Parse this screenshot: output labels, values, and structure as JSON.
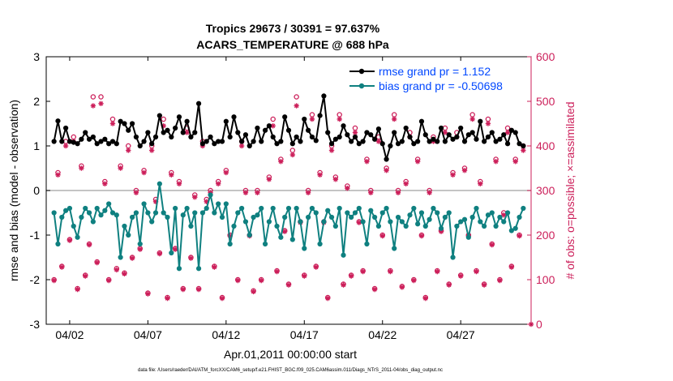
{
  "chart_data": {
    "type": "line",
    "title": "Tropics 29673 / 30391 = 97.637%",
    "subtitle": "ACARS_TEMPERATURE @ 688 hPa",
    "xlabel": "Apr.01,2011 00:00:00 start",
    "ylabel": "rmse and bias (model - observation)",
    "y2label": "# of obs: o=possible; ×=assimilated",
    "footnote": "data file: /Users/raeder/DAI/ATM_forcXX/CAM6_setup/f.e21.FHIST_BGC.f09_025.CAM6assim.011/Diags_NTrS_2011-04/obs_diag_output.nc",
    "xlim": [
      0.5,
      31.5
    ],
    "ylim": [
      -3,
      3
    ],
    "y2lim": [
      0,
      600
    ],
    "x_ticks": [
      2,
      7,
      12,
      17,
      22,
      27
    ],
    "x_tick_labels": [
      "04/02",
      "04/07",
      "04/12",
      "04/17",
      "04/22",
      "04/27"
    ],
    "y_ticks": [
      -3,
      -2,
      -1,
      0,
      1,
      2,
      3
    ],
    "y2_ticks": [
      0,
      100,
      200,
      300,
      400,
      500,
      600
    ],
    "colors": {
      "rmse": "#000000",
      "bias": "#0f8080",
      "obs": "#cc1f5a",
      "zero_line": "#b0b0b0",
      "legend_text": "#0047ff"
    },
    "x": [
      1.0,
      1.25,
      1.5,
      1.75,
      2.0,
      2.25,
      2.5,
      2.75,
      3.0,
      3.25,
      3.5,
      3.75,
      4.0,
      4.25,
      4.5,
      4.75,
      5.0,
      5.25,
      5.5,
      5.75,
      6.0,
      6.25,
      6.5,
      6.75,
      7.0,
      7.25,
      7.5,
      7.75,
      8.0,
      8.25,
      8.5,
      8.75,
      9.0,
      9.25,
      9.5,
      9.75,
      10.0,
      10.25,
      10.5,
      10.75,
      11.0,
      11.25,
      11.5,
      11.75,
      12.0,
      12.25,
      12.5,
      12.75,
      13.0,
      13.25,
      13.5,
      13.75,
      14.0,
      14.25,
      14.5,
      14.75,
      15.0,
      15.25,
      15.5,
      15.75,
      16.0,
      16.25,
      16.5,
      16.75,
      17.0,
      17.25,
      17.5,
      17.75,
      18.0,
      18.25,
      18.5,
      18.75,
      19.0,
      19.25,
      19.5,
      19.75,
      20.0,
      20.25,
      20.5,
      20.75,
      21.0,
      21.25,
      21.5,
      21.75,
      22.0,
      22.25,
      22.5,
      22.75,
      23.0,
      23.25,
      23.5,
      23.75,
      24.0,
      24.25,
      24.5,
      24.75,
      25.0,
      25.25,
      25.5,
      25.75,
      26.0,
      26.25,
      26.5,
      26.75,
      27.0,
      27.25,
      27.5,
      27.75,
      28.0,
      28.25,
      28.5,
      28.75,
      29.0,
      29.25,
      29.5,
      29.75,
      30.0,
      30.25,
      30.5,
      30.75,
      31.0
    ],
    "series": [
      {
        "name": "rmse grand pr = 1.152",
        "marker": "dot",
        "values": [
          1.1,
          1.56,
          1.1,
          1.4,
          1.1,
          1.08,
          1.05,
          1.15,
          1.3,
          1.15,
          1.2,
          1.05,
          1.1,
          1.15,
          1.05,
          1.1,
          1.05,
          1.55,
          1.5,
          1.35,
          1.5,
          1.2,
          1.0,
          1.1,
          1.3,
          1.05,
          1.2,
          1.68,
          1.3,
          1.35,
          1.2,
          1.4,
          1.65,
          1.3,
          1.55,
          1.2,
          1.3,
          1.95,
          1.05,
          1.1,
          1.2,
          1.05,
          1.1,
          1.1,
          1.55,
          1.2,
          1.65,
          1.3,
          1.1,
          1.25,
          1.0,
          1.1,
          1.4,
          1.1,
          1.35,
          1.45,
          1.2,
          1.05,
          1.1,
          1.65,
          1.35,
          1.05,
          1.2,
          1.1,
          1.6,
          1.35,
          1.2,
          1.12,
          1.68,
          2.12,
          1.3,
          1.05,
          1.15,
          1.2,
          1.45,
          1.25,
          1.1,
          1.2,
          1.05,
          1.1,
          1.3,
          1.25,
          1.15,
          1.38,
          1.05,
          0.7,
          1.0,
          1.3,
          1.05,
          1.1,
          1.4,
          1.2,
          1.05,
          1.1,
          1.55,
          1.25,
          1.1,
          1.15,
          1.1,
          1.4,
          1.1,
          1.25,
          1.15,
          1.2,
          1.4,
          1.1,
          1.25,
          1.3,
          1.15,
          1.55,
          1.1,
          1.2,
          1.3,
          1.1,
          1.15,
          1.25,
          1.05,
          1.35,
          1.3,
          1.05,
          1.0
        ]
      },
      {
        "name": "bias grand pr = -0.50698",
        "marker": "dot",
        "values": [
          -0.5,
          -1.2,
          -0.6,
          -0.45,
          -0.4,
          -0.8,
          -1.05,
          -0.6,
          -0.4,
          -0.5,
          -0.7,
          -0.4,
          -0.55,
          -0.45,
          -0.3,
          -0.5,
          -0.55,
          -1.5,
          -0.8,
          -1.0,
          -0.6,
          -0.5,
          -1.2,
          -0.3,
          -0.5,
          -0.7,
          -0.5,
          0.15,
          -0.5,
          -0.6,
          -1.4,
          -0.4,
          -1.75,
          -0.55,
          -0.4,
          -0.8,
          -0.5,
          -1.75,
          -0.5,
          -0.4,
          -0.1,
          -0.5,
          -0.3,
          -0.6,
          -0.3,
          -1.2,
          -0.8,
          -0.5,
          -0.4,
          -0.7,
          -1.0,
          -0.6,
          -0.55,
          -0.4,
          -1.2,
          -0.7,
          -0.4,
          -0.8,
          -1.05,
          -0.6,
          -0.4,
          -1.1,
          -0.4,
          -0.7,
          -1.3,
          -0.6,
          -0.4,
          -0.5,
          -1.2,
          -0.7,
          -0.45,
          -0.6,
          -0.8,
          -0.4,
          -1.45,
          -0.5,
          -0.6,
          -0.5,
          -0.4,
          -0.7,
          -1.2,
          -0.45,
          -0.6,
          -0.8,
          -0.5,
          -0.4,
          -0.7,
          -1.3,
          -0.6,
          -0.7,
          -0.8,
          -0.55,
          -0.4,
          -0.75,
          -0.5,
          -0.8,
          -0.65,
          -0.4,
          -0.5,
          -0.85,
          -0.6,
          -0.5,
          -1.5,
          -0.8,
          -0.7,
          -0.65,
          -1.05,
          -0.6,
          -0.4,
          -0.7,
          -0.8,
          -0.55,
          -0.5,
          -0.8,
          -0.6,
          -0.7,
          -0.5,
          -0.9,
          -0.85,
          -0.6,
          -0.4
        ]
      }
    ],
    "obs_possible": [
      [
        1.0,
        100
      ],
      [
        1.25,
        340
      ],
      [
        1.5,
        130
      ],
      [
        1.75,
        410
      ],
      [
        2.0,
        190
      ],
      [
        2.25,
        420
      ],
      [
        2.5,
        80
      ],
      [
        2.75,
        355
      ],
      [
        3.0,
        110
      ],
      [
        3.25,
        180
      ],
      [
        3.5,
        510
      ],
      [
        3.75,
        140
      ],
      [
        4.0,
        510
      ],
      [
        4.25,
        320
      ],
      [
        4.5,
        100
      ],
      [
        4.75,
        460
      ],
      [
        5.0,
        125
      ],
      [
        5.25,
        355
      ],
      [
        5.5,
        115
      ],
      [
        5.75,
        400
      ],
      [
        6.0,
        150
      ],
      [
        6.25,
        300
      ],
      [
        6.5,
        170
      ],
      [
        6.75,
        345
      ],
      [
        7.0,
        70
      ],
      [
        7.25,
        400
      ],
      [
        7.5,
        280
      ],
      [
        7.75,
        160
      ],
      [
        8.0,
        460
      ],
      [
        8.25,
        60
      ],
      [
        8.5,
        340
      ],
      [
        8.75,
        170
      ],
      [
        9.0,
        320
      ],
      [
        9.25,
        80
      ],
      [
        9.5,
        440
      ],
      [
        9.75,
        150
      ],
      [
        10.0,
        290
      ],
      [
        10.25,
        80
      ],
      [
        10.5,
        410
      ],
      [
        10.75,
        280
      ],
      [
        11.0,
        300
      ],
      [
        11.25,
        130
      ],
      [
        11.5,
        320
      ],
      [
        11.75,
        60
      ],
      [
        12.0,
        345
      ],
      [
        12.25,
        200
      ],
      [
        12.75,
        100
      ],
      [
        13.0,
        410
      ],
      [
        13.25,
        300
      ],
      [
        13.5,
        200
      ],
      [
        13.75,
        75
      ],
      [
        14.0,
        300
      ],
      [
        14.25,
        100
      ],
      [
        14.75,
        330
      ],
      [
        15.0,
        460
      ],
      [
        15.25,
        120
      ],
      [
        15.5,
        370
      ],
      [
        15.75,
        210
      ],
      [
        16.0,
        90
      ],
      [
        16.25,
        390
      ],
      [
        16.5,
        510
      ],
      [
        16.75,
        230
      ],
      [
        17.0,
        110
      ],
      [
        17.25,
        300
      ],
      [
        17.5,
        470
      ],
      [
        17.75,
        130
      ],
      [
        18.0,
        340
      ],
      [
        18.25,
        230
      ],
      [
        18.5,
        60
      ],
      [
        18.75,
        400
      ],
      [
        19.0,
        330
      ],
      [
        19.25,
        470
      ],
      [
        19.5,
        90
      ],
      [
        19.75,
        310
      ],
      [
        20.0,
        110
      ],
      [
        20.25,
        440
      ],
      [
        20.5,
        230
      ],
      [
        20.75,
        120
      ],
      [
        21.0,
        370
      ],
      [
        21.25,
        300
      ],
      [
        21.5,
        80
      ],
      [
        21.75,
        420
      ],
      [
        22.0,
        200
      ],
      [
        22.25,
        350
      ],
      [
        22.5,
        120
      ],
      [
        22.75,
        470
      ],
      [
        23.0,
        300
      ],
      [
        23.25,
        85
      ],
      [
        23.5,
        320
      ],
      [
        23.75,
        430
      ],
      [
        24.0,
        100
      ],
      [
        24.25,
        370
      ],
      [
        24.5,
        200
      ],
      [
        24.75,
        60
      ],
      [
        25.0,
        300
      ],
      [
        25.25,
        420
      ],
      [
        25.5,
        120
      ],
      [
        25.75,
        210
      ],
      [
        26.0,
        440
      ],
      [
        26.25,
        90
      ],
      [
        26.5,
        340
      ],
      [
        26.75,
        430
      ],
      [
        27.0,
        110
      ],
      [
        27.25,
        350
      ],
      [
        27.5,
        200
      ],
      [
        27.75,
        470
      ],
      [
        28.0,
        120
      ],
      [
        28.25,
        320
      ],
      [
        28.5,
        90
      ],
      [
        28.75,
        460
      ],
      [
        29.0,
        180
      ],
      [
        29.25,
        370
      ],
      [
        29.5,
        100
      ],
      [
        29.75,
        250
      ],
      [
        30.0,
        440
      ],
      [
        30.25,
        130
      ],
      [
        30.5,
        370
      ],
      [
        30.75,
        200
      ],
      [
        31.0,
        400
      ]
    ],
    "obs_assimilated": [
      [
        1.0,
        98
      ],
      [
        1.25,
        335
      ],
      [
        1.5,
        128
      ],
      [
        1.75,
        400
      ],
      [
        2.0,
        188
      ],
      [
        2.25,
        410
      ],
      [
        2.5,
        78
      ],
      [
        2.75,
        350
      ],
      [
        3.0,
        108
      ],
      [
        3.25,
        178
      ],
      [
        3.5,
        490
      ],
      [
        3.75,
        138
      ],
      [
        4.0,
        495
      ],
      [
        4.25,
        315
      ],
      [
        4.5,
        98
      ],
      [
        4.75,
        450
      ],
      [
        5.0,
        122
      ],
      [
        5.25,
        350
      ],
      [
        5.5,
        113
      ],
      [
        5.75,
        390
      ],
      [
        6.0,
        148
      ],
      [
        6.25,
        295
      ],
      [
        6.5,
        168
      ],
      [
        6.75,
        340
      ],
      [
        7.0,
        68
      ],
      [
        7.25,
        390
      ],
      [
        7.5,
        275
      ],
      [
        7.75,
        158
      ],
      [
        8.0,
        445
      ],
      [
        8.25,
        58
      ],
      [
        8.5,
        335
      ],
      [
        8.75,
        168
      ],
      [
        9.0,
        315
      ],
      [
        9.25,
        78
      ],
      [
        9.5,
        430
      ],
      [
        9.75,
        148
      ],
      [
        10.0,
        285
      ],
      [
        10.25,
        78
      ],
      [
        10.5,
        400
      ],
      [
        10.75,
        275
      ],
      [
        11.0,
        295
      ],
      [
        11.25,
        128
      ],
      [
        11.5,
        315
      ],
      [
        11.75,
        58
      ],
      [
        12.0,
        340
      ],
      [
        12.25,
        198
      ],
      [
        12.75,
        98
      ],
      [
        13.0,
        400
      ],
      [
        13.25,
        295
      ],
      [
        13.5,
        198
      ],
      [
        13.75,
        73
      ],
      [
        14.0,
        295
      ],
      [
        14.25,
        98
      ],
      [
        14.75,
        325
      ],
      [
        15.0,
        445
      ],
      [
        15.25,
        118
      ],
      [
        15.5,
        365
      ],
      [
        15.75,
        208
      ],
      [
        16.0,
        88
      ],
      [
        16.25,
        380
      ],
      [
        16.5,
        490
      ],
      [
        16.75,
        228
      ],
      [
        17.0,
        108
      ],
      [
        17.25,
        295
      ],
      [
        17.5,
        460
      ],
      [
        17.75,
        128
      ],
      [
        18.0,
        335
      ],
      [
        18.25,
        228
      ],
      [
        18.5,
        58
      ],
      [
        18.75,
        390
      ],
      [
        19.0,
        325
      ],
      [
        19.25,
        460
      ],
      [
        19.5,
        88
      ],
      [
        19.75,
        305
      ],
      [
        20.0,
        108
      ],
      [
        20.25,
        430
      ],
      [
        20.5,
        228
      ],
      [
        20.75,
        118
      ],
      [
        21.0,
        365
      ],
      [
        21.25,
        295
      ],
      [
        21.5,
        78
      ],
      [
        21.75,
        410
      ],
      [
        22.0,
        198
      ],
      [
        22.25,
        345
      ],
      [
        22.5,
        118
      ],
      [
        22.75,
        460
      ],
      [
        23.0,
        295
      ],
      [
        23.25,
        83
      ],
      [
        23.5,
        315
      ],
      [
        23.75,
        420
      ],
      [
        24.0,
        98
      ],
      [
        24.25,
        365
      ],
      [
        24.5,
        198
      ],
      [
        24.75,
        58
      ],
      [
        25.0,
        295
      ],
      [
        25.25,
        410
      ],
      [
        25.5,
        118
      ],
      [
        25.75,
        208
      ],
      [
        26.0,
        430
      ],
      [
        26.25,
        88
      ],
      [
        26.5,
        335
      ],
      [
        26.75,
        420
      ],
      [
        27.0,
        108
      ],
      [
        27.25,
        345
      ],
      [
        27.5,
        198
      ],
      [
        27.75,
        460
      ],
      [
        28.0,
        118
      ],
      [
        28.25,
        315
      ],
      [
        28.5,
        88
      ],
      [
        28.75,
        450
      ],
      [
        29.0,
        178
      ],
      [
        29.25,
        365
      ],
      [
        29.5,
        98
      ],
      [
        29.75,
        245
      ],
      [
        30.0,
        430
      ],
      [
        30.25,
        128
      ],
      [
        30.5,
        365
      ],
      [
        30.75,
        198
      ],
      [
        31.0,
        390
      ],
      [
        31.5,
        0
      ]
    ]
  }
}
